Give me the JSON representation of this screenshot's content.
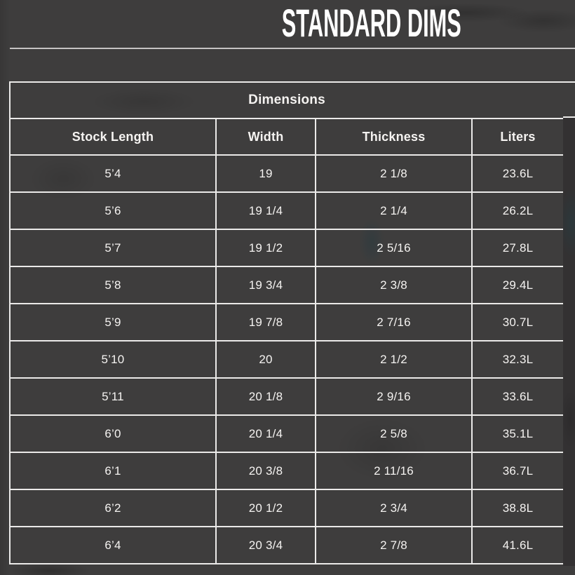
{
  "page": {
    "title": "STANDARD DIMS",
    "colors": {
      "background": "#3e3d3d",
      "cell_border": "#ebeae9",
      "divider_line": "#c6c4c4",
      "title_text": "#ffffff",
      "table_text": "#f5f3f1",
      "right_edge_shade": "#333132"
    }
  },
  "table": {
    "group_header": "Dimensions",
    "columns": [
      "Stock Length",
      "Width",
      "Thickness",
      "Liters"
    ],
    "rows": [
      [
        "5’4",
        "19",
        "2 1/8",
        "23.6L"
      ],
      [
        "5’6",
        "19 1/4",
        "2 1/4",
        "26.2L"
      ],
      [
        "5’7",
        "19 1/2",
        "2 5/16",
        "27.8L"
      ],
      [
        "5’8",
        "19 3/4",
        "2 3/8",
        "29.4L"
      ],
      [
        "5’9",
        "19 7/8",
        "2 7/16",
        "30.7L"
      ],
      [
        "5’10",
        "20",
        "2 1/2",
        "32.3L"
      ],
      [
        "5’11",
        "20 1/8",
        "2 9/16",
        "33.6L"
      ],
      [
        "6’0",
        "20 1/4",
        "2 5/8",
        "35.1L"
      ],
      [
        "6’1",
        "20 3/8",
        "2 11/16",
        "36.7L"
      ],
      [
        "6’2",
        "20 1/2",
        "2 3/4",
        "38.8L"
      ],
      [
        "6’4",
        "20 3/4",
        "2 7/8",
        "41.6L"
      ]
    ]
  }
}
